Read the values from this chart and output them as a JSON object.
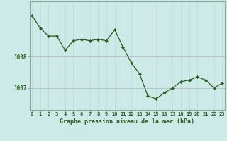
{
  "x": [
    0,
    1,
    2,
    3,
    4,
    5,
    6,
    7,
    8,
    9,
    10,
    11,
    12,
    13,
    14,
    15,
    16,
    17,
    18,
    19,
    20,
    21,
    22,
    23
  ],
  "y": [
    1009.3,
    1008.9,
    1008.65,
    1008.65,
    1008.2,
    1008.5,
    1008.55,
    1008.5,
    1008.55,
    1008.5,
    1008.85,
    1008.3,
    1007.8,
    1007.45,
    1006.75,
    1006.65,
    1006.85,
    1007.0,
    1007.2,
    1007.25,
    1007.35,
    1007.25,
    1007.0,
    1007.15
  ],
  "line_color": "#2d5a1b",
  "marker_color": "#2d5a1b",
  "bg_color": "#cceae7",
  "grid_color_v": "#c8dbd8",
  "grid_color_h": "#c0b8c0",
  "border_color": "#8aaa96",
  "ylabel_ticks": [
    1007,
    1008
  ],
  "xlabel_ticks": [
    0,
    1,
    2,
    3,
    4,
    5,
    6,
    7,
    8,
    9,
    10,
    11,
    12,
    13,
    14,
    15,
    16,
    17,
    18,
    19,
    20,
    21,
    22,
    23
  ],
  "xlabel_label": "Graphe pression niveau de la mer (hPa)",
  "ylim": [
    1006.3,
    1009.75
  ],
  "xlim": [
    -0.3,
    23.3
  ]
}
